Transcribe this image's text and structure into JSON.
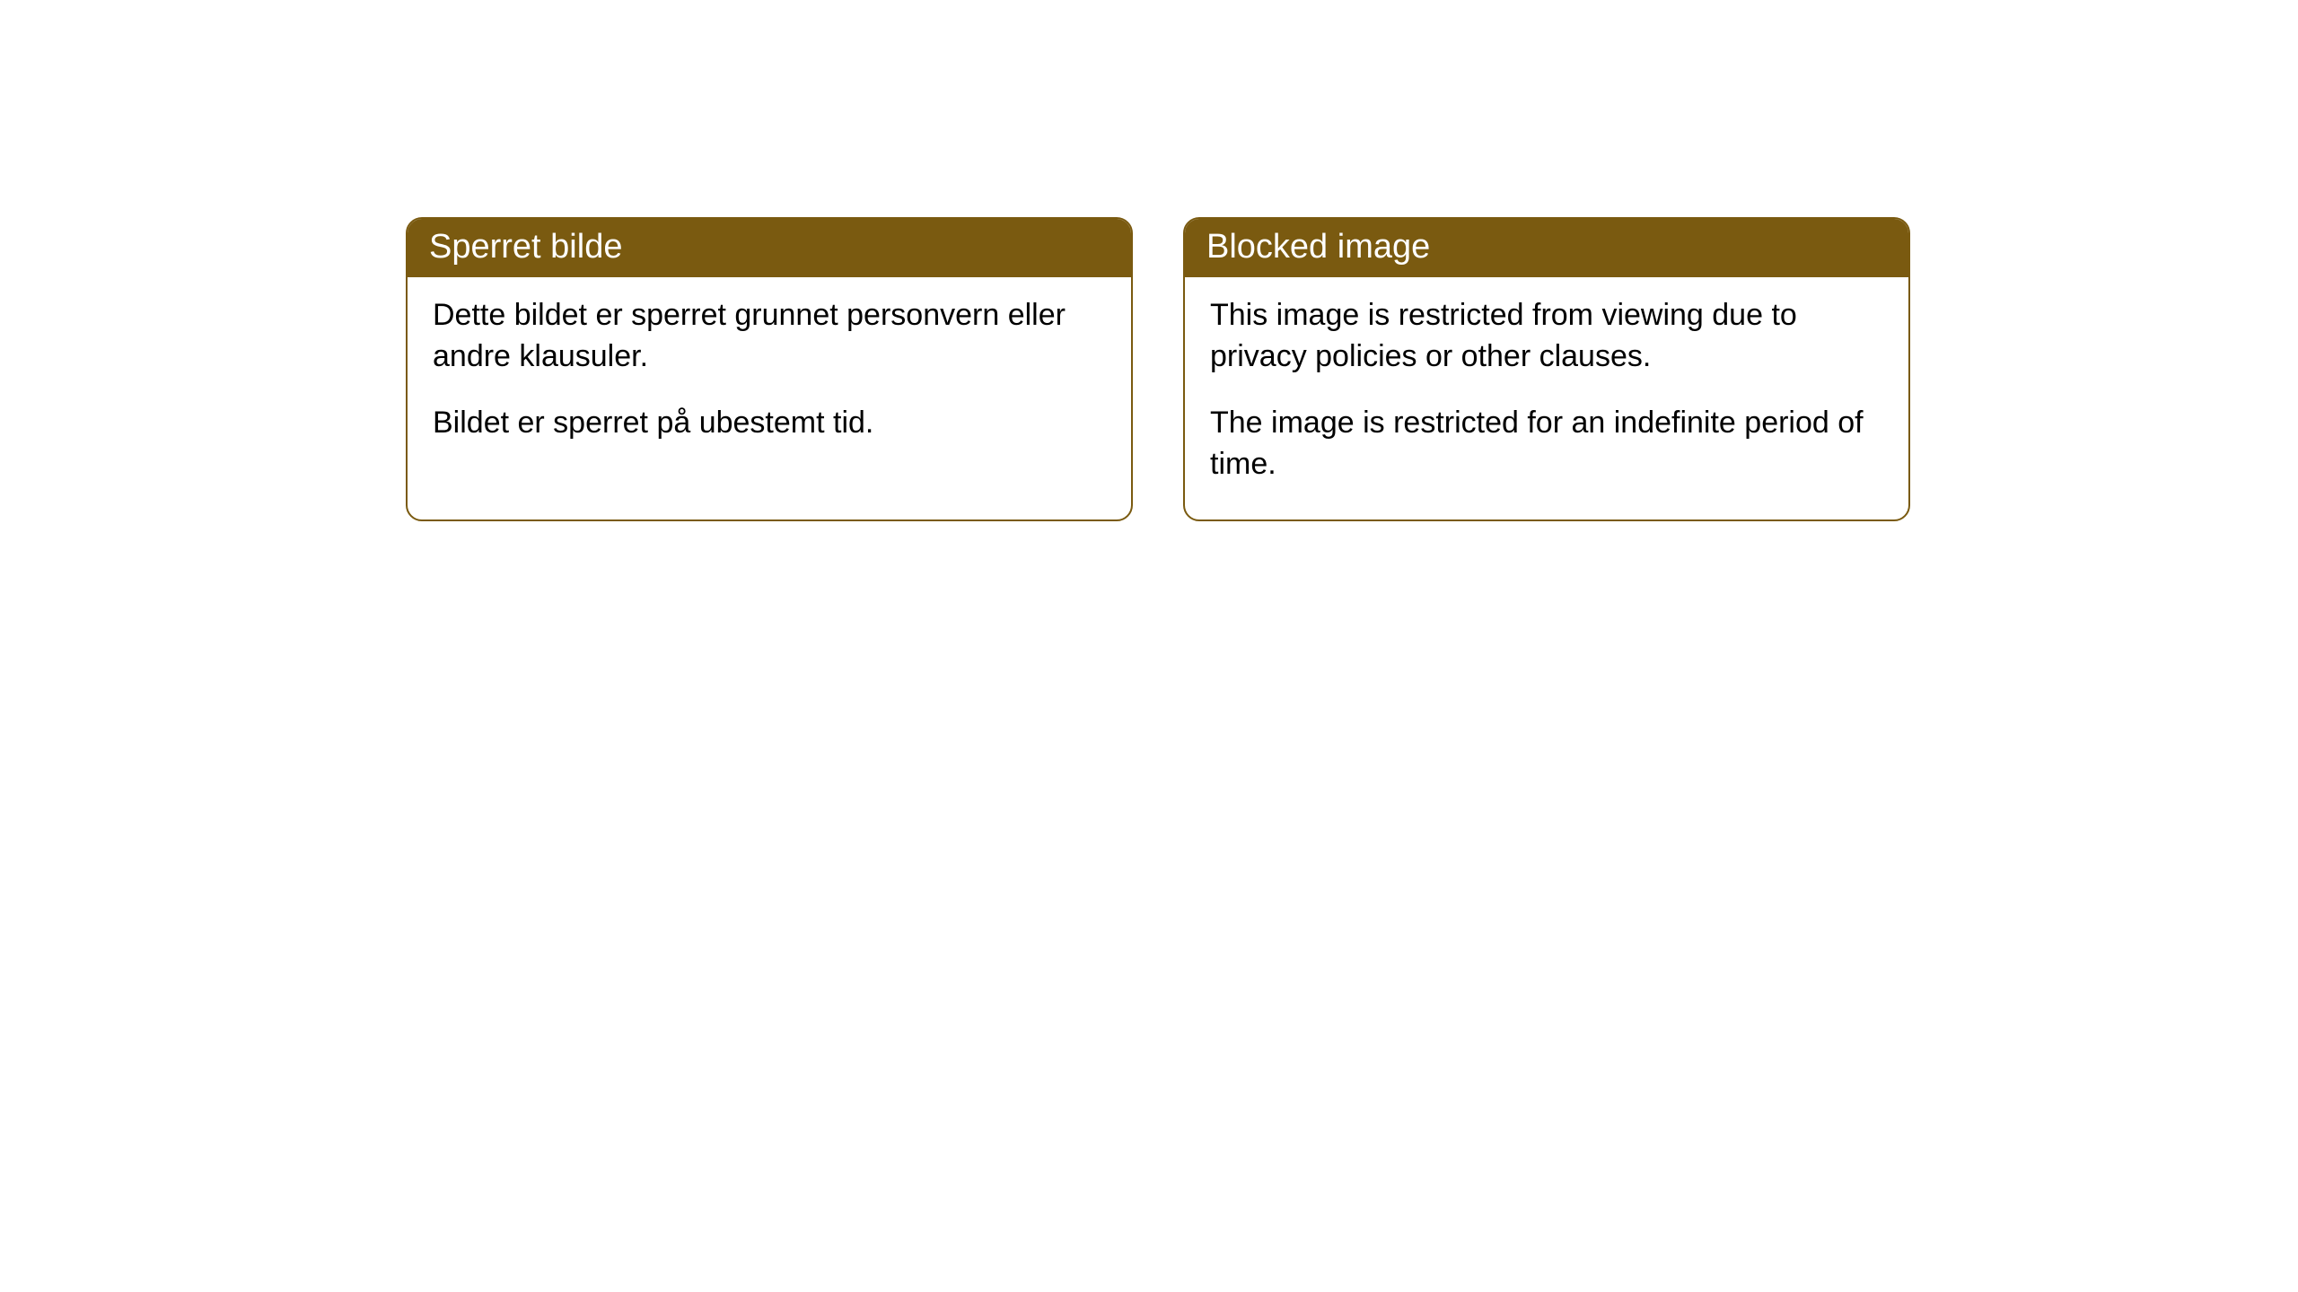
{
  "cards": [
    {
      "title": "Sperret bilde",
      "paragraph1": "Dette bildet er sperret grunnet personvern eller andre klausuler.",
      "paragraph2": "Bildet er sperret på ubestemt tid."
    },
    {
      "title": "Blocked image",
      "paragraph1": "This image is restricted from viewing due to privacy policies or other clauses.",
      "paragraph2": "The image is restricted for an indefinite period of time."
    }
  ],
  "styling": {
    "header_background": "#7a5a10",
    "header_text_color": "#ffffff",
    "card_border_color": "#7a5a10",
    "card_background": "#ffffff",
    "body_text_color": "#000000",
    "page_background": "#ffffff",
    "border_radius": 18,
    "header_fontsize": 38,
    "body_fontsize": 34
  }
}
